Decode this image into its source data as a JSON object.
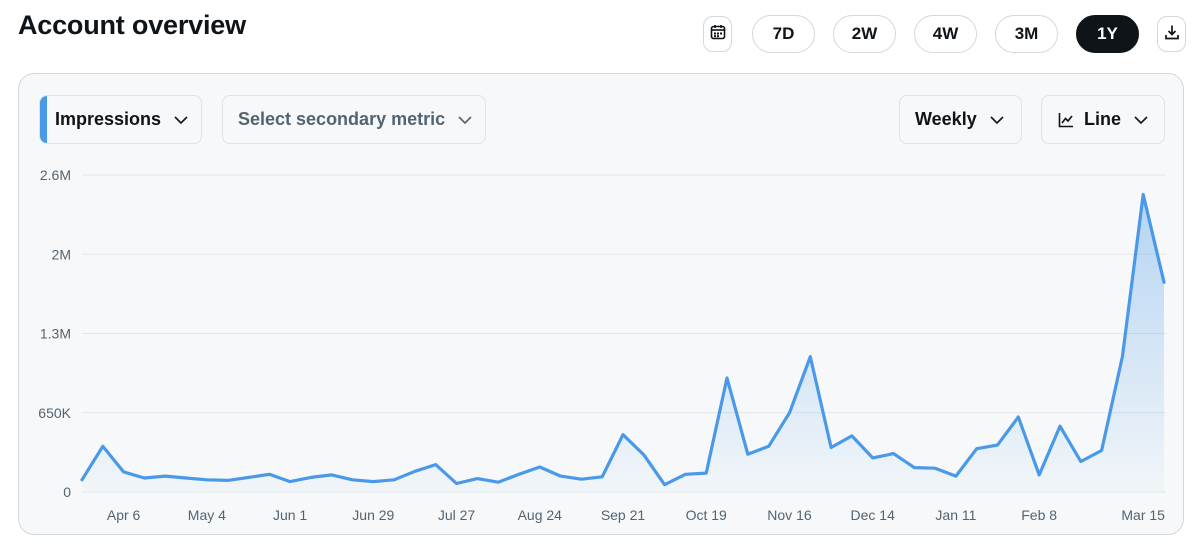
{
  "header": {
    "title": "Account overview",
    "ranges": [
      "7D",
      "2W",
      "4W",
      "3M",
      "1Y"
    ],
    "active_range": "1Y",
    "calendar_icon": "calendar-icon",
    "download_icon": "download-icon"
  },
  "controls": {
    "primary_metric": "Impressions",
    "secondary_metric_placeholder": "Select secondary metric",
    "interval": "Weekly",
    "chart_type": "Line",
    "chart_type_icon": "line-chart-icon"
  },
  "colors": {
    "line": "#4a99e9",
    "accent": "#4a99e9",
    "active_bg": "#0f1419"
  },
  "chart_data": {
    "type": "area",
    "series": [
      {
        "values": [
          100000,
          375000,
          165000,
          115000,
          130000,
          115000,
          100000,
          95000,
          120000,
          145000,
          85000,
          120000,
          140000,
          100000,
          85000,
          100000,
          170000,
          225000,
          70000,
          110000,
          80000,
          145000,
          205000,
          130000,
          105000,
          125000,
          470000,
          305000,
          60000,
          145000,
          155000,
          935000,
          310000,
          375000,
          650000,
          1110000,
          365000,
          460000,
          280000,
          315000,
          200000,
          195000,
          130000,
          355000,
          385000,
          615000,
          140000,
          540000,
          250000,
          340000,
          1110000,
          2440000,
          1720000
        ]
      }
    ],
    "x_tick_labels": [
      "Apr 6",
      "May 4",
      "Jun 1",
      "Jun 29",
      "Jul 27",
      "Aug 24",
      "Sep 21",
      "Oct 19",
      "Nov 16",
      "Dec 14",
      "Jan 11",
      "Feb 8",
      "Mar 15"
    ],
    "x_tick_positions": [
      2,
      6,
      10,
      14,
      18,
      22,
      26,
      30,
      34,
      38,
      42,
      46,
      51
    ],
    "y_ticks": [
      0,
      650000,
      1300000,
      1950000,
      2600000
    ],
    "y_tick_labels": [
      "0",
      "650K",
      "1.3M",
      "2M",
      "2.6M"
    ],
    "ylim": [
      0,
      2600000
    ],
    "grid": true,
    "legend": "none"
  }
}
